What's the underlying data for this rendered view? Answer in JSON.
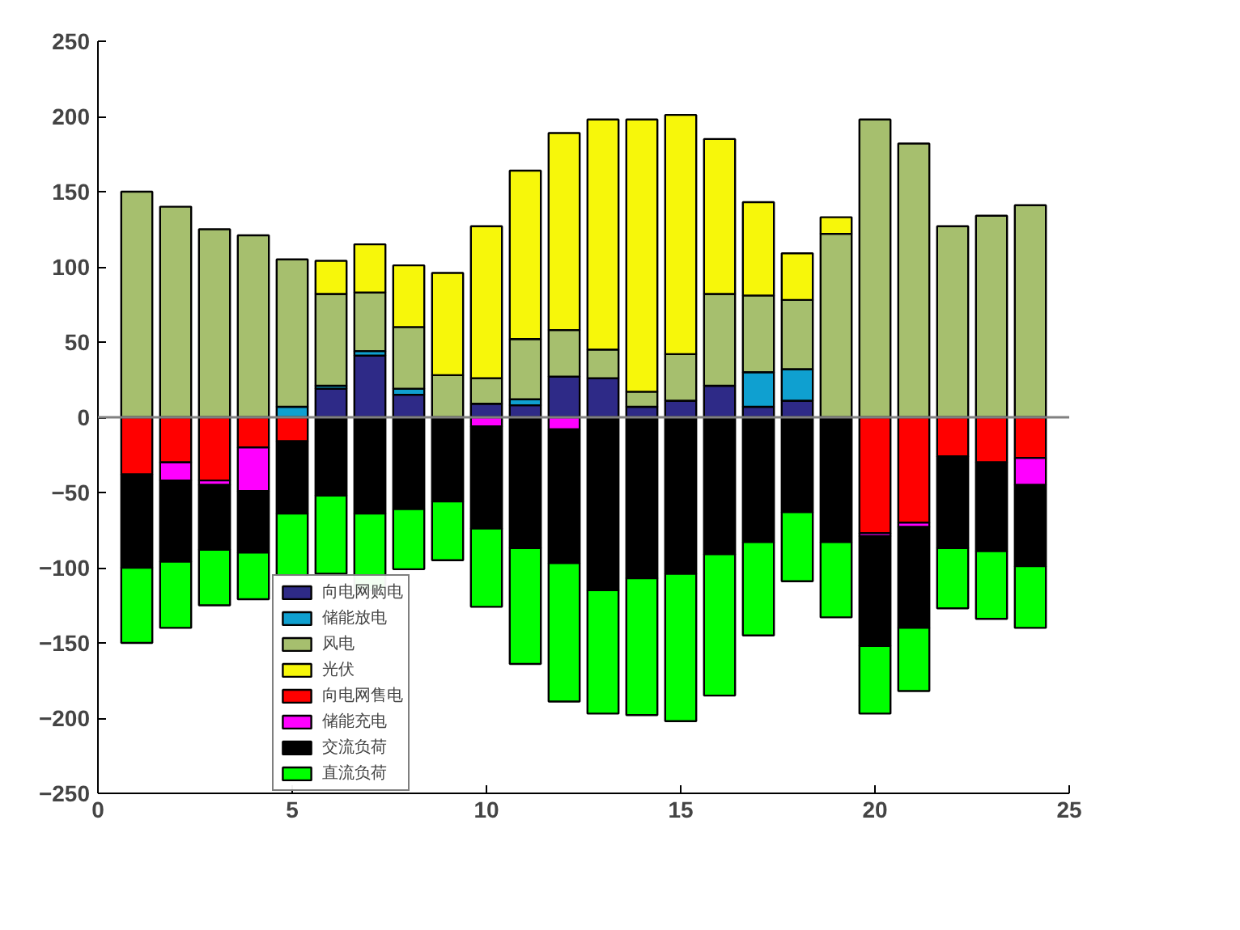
{
  "chart_data": {
    "type": "bar",
    "stacked": true,
    "x": [
      1,
      2,
      3,
      4,
      5,
      6,
      7,
      8,
      9,
      10,
      11,
      12,
      13,
      14,
      15,
      16,
      17,
      18,
      19,
      20,
      21,
      22,
      23,
      24
    ],
    "series": [
      {
        "name": "向电网购电",
        "color": "#2e2a87",
        "values": [
          0,
          0,
          0,
          0,
          0,
          19,
          41,
          15,
          0,
          9,
          8,
          27,
          26,
          7,
          11,
          21,
          7,
          11,
          0,
          0,
          0,
          0,
          0,
          0
        ]
      },
      {
        "name": "储能放电",
        "color": "#0fa0d0",
        "values": [
          0,
          0,
          0,
          0,
          7,
          2,
          3,
          4,
          0,
          0,
          4,
          0,
          0,
          0,
          0,
          0,
          23,
          21,
          0,
          0,
          0,
          0,
          null,
          0
        ]
      },
      {
        "name": "风电",
        "color": "#a6bf6e",
        "values": [
          150,
          140,
          125,
          121,
          98,
          61,
          39,
          41,
          28,
          17,
          40,
          31,
          19,
          10,
          31,
          61,
          51,
          46,
          122,
          198,
          182,
          127,
          134,
          141
        ]
      },
      {
        "name": "光伏",
        "color": "#f7f70a",
        "values": [
          0,
          0,
          0,
          0,
          0,
          22,
          32,
          41,
          68,
          101,
          112,
          131,
          153,
          181,
          159,
          103,
          62,
          31,
          11,
          0,
          0,
          0,
          0,
          0
        ]
      },
      {
        "name": "向电网售电",
        "color": "#ff0000",
        "values": [
          -38,
          -30,
          -42,
          -20,
          -16,
          0,
          0,
          0,
          0,
          0,
          0,
          0,
          0,
          0,
          0,
          0,
          0,
          0,
          0,
          -77,
          -70,
          -26,
          -30,
          -27
        ]
      },
      {
        "name": "储能充电",
        "color": "#ff00ff",
        "values": [
          0,
          -12,
          -3,
          -29,
          0,
          0,
          0,
          0,
          0,
          -6,
          0,
          -8,
          null,
          0,
          0,
          0,
          0,
          0,
          0,
          -2,
          -3,
          0,
          0,
          -18
        ]
      },
      {
        "name": "交流负荷",
        "color": "#000000",
        "values": [
          -62,
          -54,
          -43,
          -41,
          -48,
          -52,
          -64,
          -61,
          -56,
          -68,
          -87,
          -89,
          -115,
          -107,
          -104,
          -91,
          -83,
          -63,
          -83,
          -73,
          -67,
          -61,
          -59,
          -54
        ]
      },
      {
        "name": "直流负荷",
        "color": "#00ff00",
        "values": [
          -50,
          -44,
          -37,
          -31,
          -41,
          -52,
          -51,
          -40,
          -39,
          -52,
          -77,
          -92,
          -82,
          -91,
          -98,
          -94,
          -62,
          -46,
          -50,
          -45,
          -42,
          -40,
          -45,
          -41
        ]
      }
    ],
    "xlim": [
      0,
      25
    ],
    "xticks": [
      0,
      5,
      10,
      15,
      20,
      25
    ],
    "ylim": [
      -250,
      250
    ],
    "yticks": [
      -250,
      -200,
      -150,
      -100,
      -50,
      0,
      50,
      100,
      150,
      200,
      250
    ],
    "ref_lines": [
      {
        "axis": "y",
        "value": 0,
        "color": "#808080"
      }
    ],
    "grid": false,
    "legend": "bottom"
  }
}
